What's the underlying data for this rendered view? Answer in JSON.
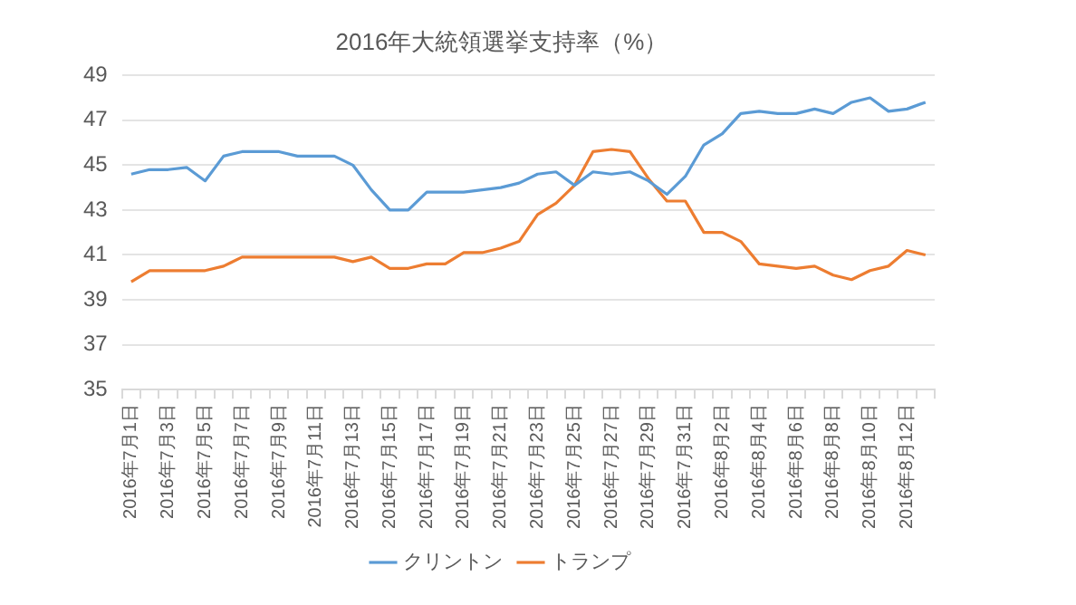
{
  "chart_data": {
    "type": "line",
    "title": "2016年大統領選挙支持率（%）",
    "categories": [
      "2016年7月1日",
      null,
      "2016年7月3日",
      null,
      "2016年7月5日",
      null,
      "2016年7月7日",
      null,
      "2016年7月9日",
      null,
      "2016年7月11日",
      null,
      "2016年7月13日",
      null,
      "2016年7月15日",
      null,
      "2016年7月17日",
      null,
      "2016年7月19日",
      null,
      "2016年7月21日",
      null,
      "2016年7月23日",
      null,
      "2016年7月25日",
      null,
      "2016年7月27日",
      null,
      "2016年7月29日",
      null,
      "2016年7月31日",
      null,
      "2016年8月2日",
      null,
      "2016年8月4日",
      null,
      "2016年8月6日",
      null,
      "2016年8月8日",
      null,
      "2016年8月10日",
      null,
      "2016年8月12日",
      null
    ],
    "series": [
      {
        "name": "クリントン",
        "color": "#5b9bd5",
        "values": [
          44.6,
          44.8,
          44.8,
          44.9,
          44.3,
          45.4,
          45.6,
          45.6,
          45.6,
          45.4,
          45.4,
          45.4,
          45.0,
          43.9,
          43.0,
          43.0,
          43.8,
          43.8,
          43.8,
          43.9,
          44.0,
          44.2,
          44.6,
          44.7,
          44.1,
          44.7,
          44.6,
          44.7,
          44.3,
          43.7,
          44.5,
          45.9,
          46.4,
          47.3,
          47.4,
          47.3,
          47.3,
          47.5,
          47.3,
          47.8,
          48.0,
          47.4,
          47.5,
          47.8
        ]
      },
      {
        "name": "トランプ",
        "color": "#ed7d31",
        "values": [
          39.8,
          40.3,
          40.3,
          40.3,
          40.3,
          40.5,
          40.9,
          40.9,
          40.9,
          40.9,
          40.9,
          40.9,
          40.7,
          40.9,
          40.4,
          40.4,
          40.6,
          40.6,
          41.1,
          41.1,
          41.3,
          41.6,
          42.8,
          43.3,
          44.1,
          45.6,
          45.7,
          45.6,
          44.4,
          43.4,
          43.4,
          42.0,
          42.0,
          41.6,
          40.6,
          40.5,
          40.4,
          40.5,
          40.1,
          39.9,
          40.3,
          40.5,
          41.2,
          41.0
        ]
      }
    ],
    "ylim": [
      35,
      49
    ],
    "yticks": [
      35,
      37,
      39,
      41,
      43,
      45,
      47,
      49
    ],
    "grid": "y",
    "legend": "bottom",
    "marker": "none",
    "line_style": "solid"
  }
}
